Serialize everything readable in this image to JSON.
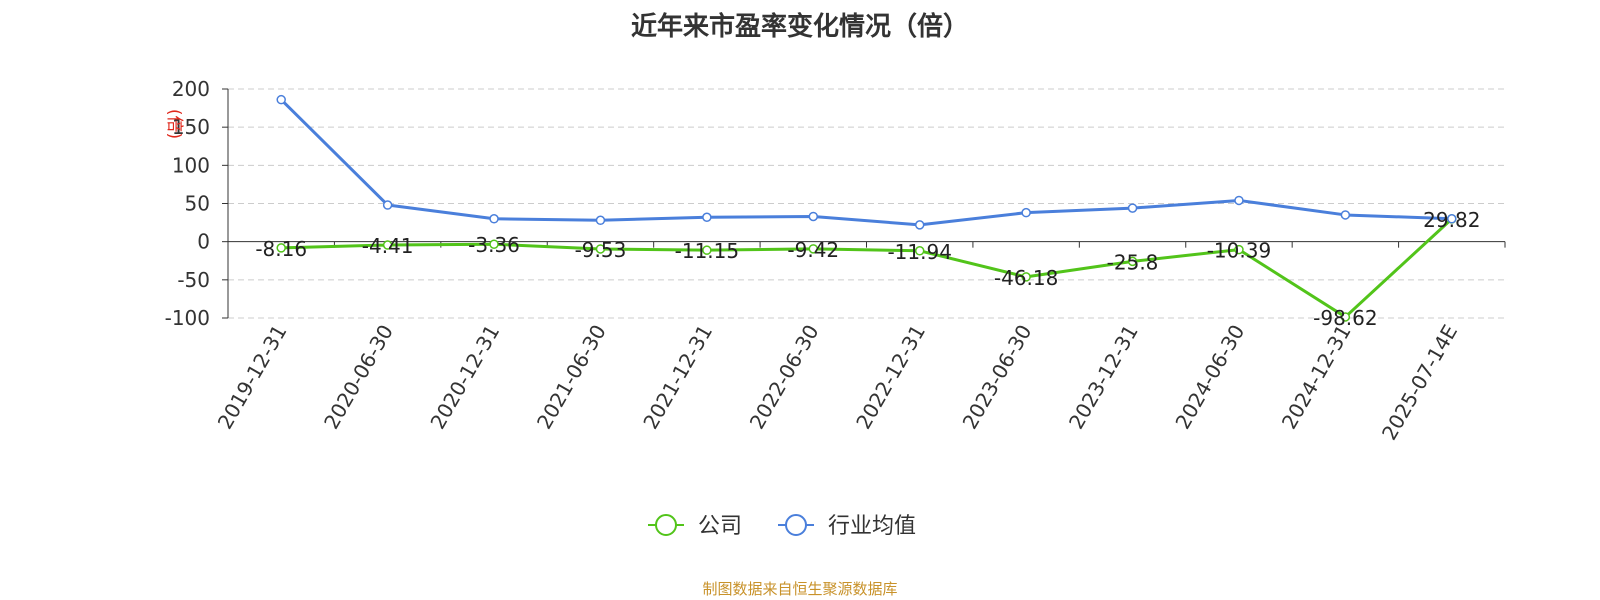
{
  "title": "近年来市盈率变化情况（倍）",
  "source": "制图数据来自恒生聚源数据库",
  "colors": {
    "company": "#52c41a",
    "industry": "#4a7fdb",
    "unit": "#e0281c",
    "source": "#c8922a"
  },
  "chart_data": {
    "type": "line",
    "title": "近年来市盈率变化情况（倍）",
    "ylabel": "(倍)",
    "xlabel": "",
    "ylim": [
      -100,
      200
    ],
    "yticks": [
      200,
      150,
      100,
      50,
      0,
      -50,
      -100
    ],
    "grid": true,
    "legend_position": "bottom-center",
    "categories": [
      "2019-12-31",
      "2020-06-30",
      "2020-12-31",
      "2021-06-30",
      "2021-12-31",
      "2022-06-30",
      "2022-12-31",
      "2023-06-30",
      "2023-12-31",
      "2024-06-30",
      "2024-12-31",
      "2025-07-14E"
    ],
    "series": [
      {
        "name": "公司",
        "color": "#52c41a",
        "values": [
          -8.16,
          -4.41,
          -3.36,
          -9.53,
          -11.15,
          -9.42,
          -11.94,
          -46.18,
          -25.8,
          -10.39,
          -98.62,
          29.82
        ],
        "labels": [
          "-8.16",
          "-4.41",
          "-3.36",
          "-9.53",
          "-11.15",
          "-9.42",
          "-11.94",
          "-46.18",
          "-25.8",
          "-10.39",
          "-98.62",
          "29.82"
        ]
      },
      {
        "name": "行业均值",
        "color": "#4a7fdb",
        "values": [
          186,
          48,
          30,
          28,
          32,
          33,
          22,
          38,
          44,
          54,
          35,
          30
        ]
      }
    ]
  }
}
